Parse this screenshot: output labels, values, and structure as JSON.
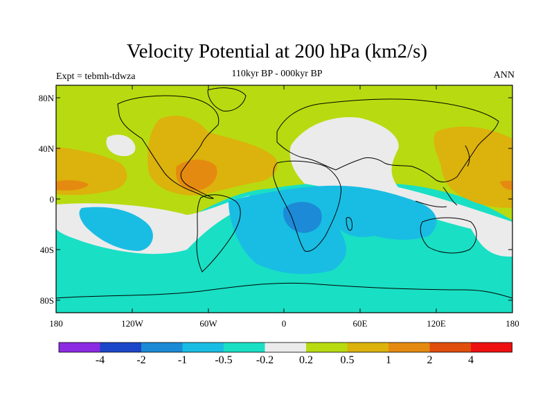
{
  "title": "Velocity Potential at 200 hPa (km2/s)",
  "subtitle": "110kyr BP - 000kyr BP",
  "experiment": "Expt = tebmh-tdwza",
  "season": "ANN",
  "lat_ticks": [
    "80N",
    "40N",
    "0",
    "40S",
    "80S"
  ],
  "lon_ticks": [
    "180",
    "120W",
    "60W",
    "0",
    "60E",
    "120E",
    "180"
  ],
  "colorbar": {
    "levels": [
      "-4",
      "-2",
      "-1",
      "-0.5",
      "-0.2",
      "0.2",
      "0.5",
      "1",
      "2",
      "4"
    ],
    "colors": [
      "#8b2be2",
      "#1c46c8",
      "#1c8ad6",
      "#19bde3",
      "#19dfc4",
      "#ebebeb",
      "#b7db10",
      "#dcb20c",
      "#e58a10",
      "#e04d0c",
      "#ee1010"
    ]
  },
  "field_colors": {
    "neg_strong": "#1c8ad6",
    "neg": "#19bde3",
    "neg_weak": "#19dfc4",
    "neutral": "#ebebeb",
    "pos_weak": "#b7db10",
    "pos": "#dcb20c",
    "pos_strong": "#e58a10"
  }
}
